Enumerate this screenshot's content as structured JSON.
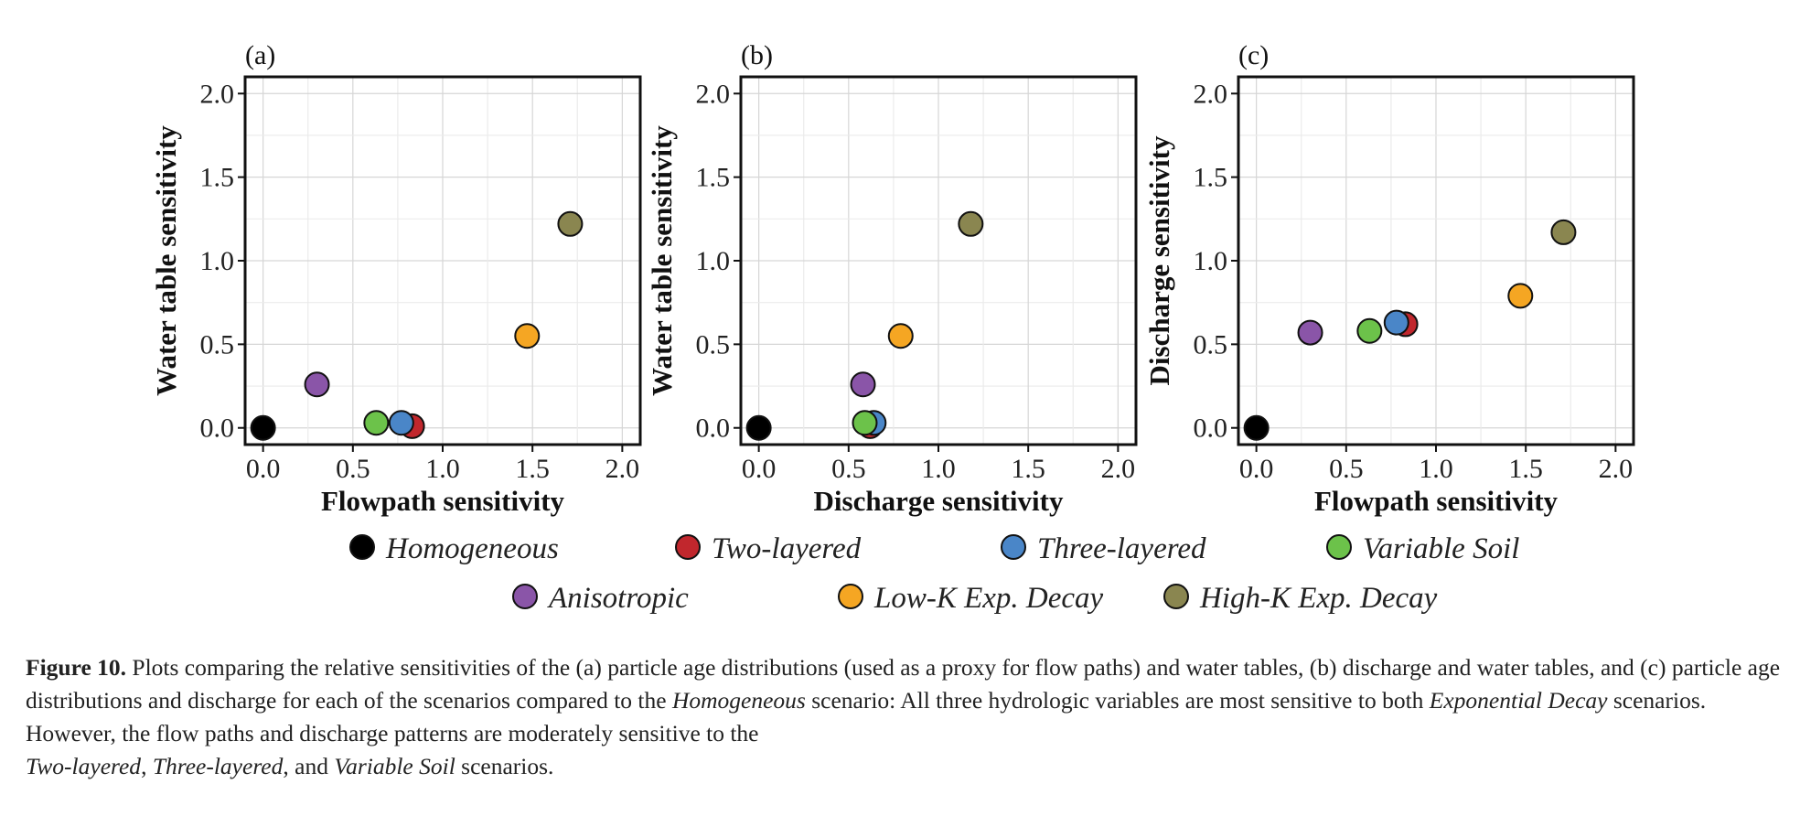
{
  "chart_data": [
    {
      "type": "scatter",
      "panel_label": "(a)",
      "xlabel": "Flowpath sensitivity",
      "ylabel": "Water table sensitivity",
      "xlim": [
        -0.1,
        2.1
      ],
      "ylim": [
        -0.1,
        2.1
      ],
      "xticks": [
        "0.0",
        "0.5",
        "1.0",
        "1.5",
        "2.0"
      ],
      "yticks": [
        "0.0",
        "0.5",
        "1.0",
        "1.5",
        "2.0"
      ],
      "grid": true,
      "series": [
        {
          "name": "Homogeneous",
          "x": 0.0,
          "y": 0.0
        },
        {
          "name": "Two-layered",
          "x": 0.83,
          "y": 0.01
        },
        {
          "name": "Three-layered",
          "x": 0.77,
          "y": 0.03
        },
        {
          "name": "Variable Soil",
          "x": 0.63,
          "y": 0.03
        },
        {
          "name": "Anisotropic",
          "x": 0.3,
          "y": 0.26
        },
        {
          "name": "Low-K Exp. Decay",
          "x": 1.47,
          "y": 0.55
        },
        {
          "name": "High-K Exp. Decay",
          "x": 1.71,
          "y": 1.22
        }
      ]
    },
    {
      "type": "scatter",
      "panel_label": "(b)",
      "xlabel": "Discharge sensitivity",
      "ylabel": "Water table sensitivity",
      "xlim": [
        -0.1,
        2.1
      ],
      "ylim": [
        -0.1,
        2.1
      ],
      "xticks": [
        "0.0",
        "0.5",
        "1.0",
        "1.5",
        "2.0"
      ],
      "yticks": [
        "0.0",
        "0.5",
        "1.0",
        "1.5",
        "2.0"
      ],
      "grid": true,
      "series": [
        {
          "name": "Homogeneous",
          "x": 0.0,
          "y": 0.0
        },
        {
          "name": "Two-layered",
          "x": 0.62,
          "y": 0.01
        },
        {
          "name": "Three-layered",
          "x": 0.64,
          "y": 0.03
        },
        {
          "name": "Variable Soil",
          "x": 0.59,
          "y": 0.03
        },
        {
          "name": "Anisotropic",
          "x": 0.58,
          "y": 0.26
        },
        {
          "name": "Low-K Exp. Decay",
          "x": 0.79,
          "y": 0.55
        },
        {
          "name": "High-K Exp. Decay",
          "x": 1.18,
          "y": 1.22
        }
      ]
    },
    {
      "type": "scatter",
      "panel_label": "(c)",
      "xlabel": "Flowpath sensitivity",
      "ylabel": "Discharge sensitivity",
      "xlim": [
        -0.1,
        2.1
      ],
      "ylim": [
        -0.1,
        2.1
      ],
      "xticks": [
        "0.0",
        "0.5",
        "1.0",
        "1.5",
        "2.0"
      ],
      "yticks": [
        "0.0",
        "0.5",
        "1.0",
        "1.5",
        "2.0"
      ],
      "grid": true,
      "series": [
        {
          "name": "Homogeneous",
          "x": 0.0,
          "y": 0.0
        },
        {
          "name": "Two-layered",
          "x": 0.83,
          "y": 0.62
        },
        {
          "name": "Three-layered",
          "x": 0.78,
          "y": 0.63
        },
        {
          "name": "Variable Soil",
          "x": 0.63,
          "y": 0.58
        },
        {
          "name": "Anisotropic",
          "x": 0.3,
          "y": 0.57
        },
        {
          "name": "Low-K Exp. Decay",
          "x": 1.47,
          "y": 0.79
        },
        {
          "name": "High-K Exp. Decay",
          "x": 1.71,
          "y": 1.17
        }
      ]
    }
  ],
  "legend": {
    "placement": "bottom",
    "items": [
      {
        "label": "Homogeneous",
        "color": "#000000"
      },
      {
        "label": "Two-layered",
        "color": "#c1272d"
      },
      {
        "label": "Three-layered",
        "color": "#4a86c8"
      },
      {
        "label": "Variable Soil",
        "color": "#6cc24a"
      },
      {
        "label": "Anisotropic",
        "color": "#8a55a8"
      },
      {
        "label": "Low-K Exp. Decay",
        "color": "#f5a623"
      },
      {
        "label": "High-K Exp. Decay",
        "color": "#8a8650"
      }
    ]
  },
  "caption": {
    "label": "Figure 10.",
    "t1": " Plots comparing the relative sensitivities of the (a) particle age distributions (used as a proxy for flow paths) and water tables, (b) discharge and water tables, and (c) particle age distributions and discharge for each of the scenarios compared to the ",
    "i1": "Homogeneous",
    "t2": " scenario: All three hydrologic variables are most sensitive to both ",
    "i2": "Exponential Decay",
    "t3": " scenarios. However, the flow paths and discharge patterns are moderately sensitive to the ",
    "i3": "Two-layered",
    "t4": ", ",
    "i4": "Three-layered",
    "t5": ", and ",
    "i5": "Variable Soil",
    "t6": " scenarios."
  }
}
